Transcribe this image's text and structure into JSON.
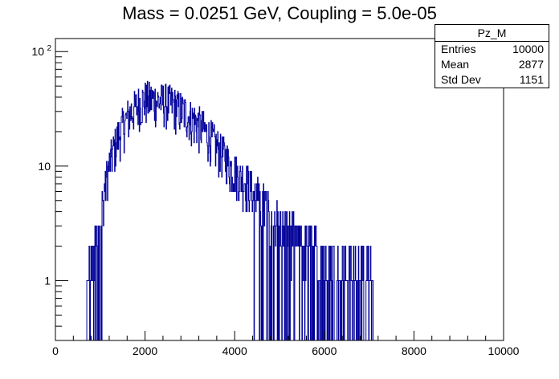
{
  "chart_data": {
    "type": "histogram",
    "title": "Mass = 0.0251 GeV, Coupling = 5.0e-05",
    "xlim": [
      0,
      10000
    ],
    "ylim": [
      0.3,
      130
    ],
    "y_scale": "log",
    "grid": false,
    "xticks": [
      "0",
      "2000",
      "4000",
      "6000",
      "8000",
      "10000"
    ],
    "yticks": [
      {
        "value": 1,
        "label": "1"
      },
      {
        "value": 10,
        "label": "10"
      },
      {
        "value": 100,
        "label": "10",
        "exp": "2"
      }
    ],
    "series": [
      {
        "color": "#000099",
        "profile": {
          "x": [
            700,
            800,
            900,
            1000,
            1100,
            1200,
            1300,
            1400,
            1500,
            1600,
            1700,
            1800,
            1900,
            2000,
            2100,
            2200,
            2300,
            2400,
            2500,
            2600,
            2700,
            2800,
            2900,
            3000,
            3100,
            3200,
            3300,
            3400,
            3500,
            3600,
            3700,
            3800,
            3900,
            4000,
            4100,
            4200,
            4300,
            4400,
            4500,
            4600,
            4700,
            4800,
            4900,
            5000,
            5200,
            5400,
            5600,
            5800,
            6000,
            6200,
            6400,
            6600,
            6800,
            7000,
            7100
          ],
          "y": [
            1,
            1.5,
            2,
            3,
            6,
            10,
            14,
            18,
            22,
            26,
            30,
            33,
            36,
            38,
            38,
            38,
            37,
            37,
            36,
            35,
            33,
            31,
            29,
            27,
            25,
            23,
            21,
            19,
            17,
            15,
            13,
            12,
            10,
            9,
            8,
            7.5,
            7,
            6,
            5.5,
            5,
            4.5,
            4,
            3.6,
            3.2,
            2.8,
            2.4,
            2.1,
            1.9,
            1.7,
            1.6,
            1.5,
            1.4,
            1.3,
            1.2,
            1.1
          ]
        }
      }
    ]
  },
  "stats_box": {
    "title": "Pz_M",
    "rows": [
      {
        "label": "Entries",
        "value": "10000"
      },
      {
        "label": "Mean",
        "value": "2877"
      },
      {
        "label": "Std Dev",
        "value": "1151"
      }
    ]
  }
}
